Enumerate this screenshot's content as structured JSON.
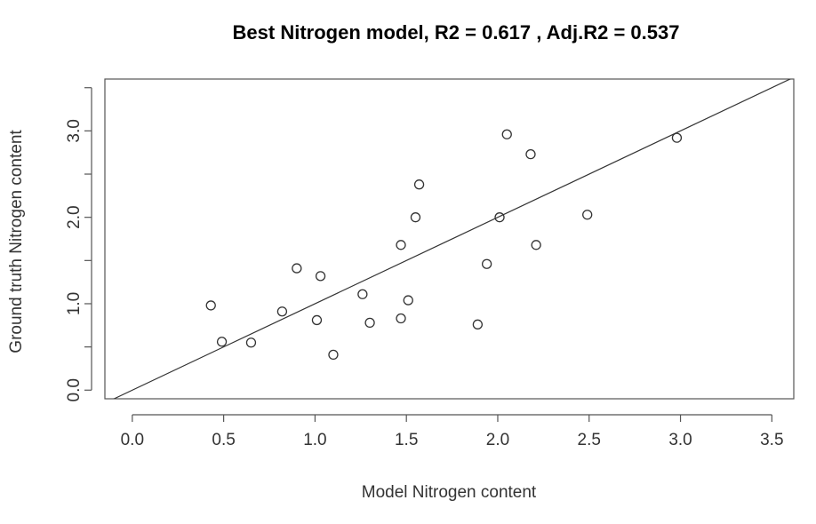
{
  "chart_data": {
    "type": "scatter",
    "title": "Best Nitrogen model,  R2 =  0.617 , Adj.R2 = 0.537",
    "xlabel": "Model Nitrogen content",
    "ylabel": "Ground truth Nitrogen content",
    "xlim": [
      -0.15,
      3.62
    ],
    "ylim": [
      -0.1,
      3.6
    ],
    "x_ticks": [
      0.0,
      0.5,
      1.0,
      1.5,
      2.0,
      2.5,
      3.0,
      3.5
    ],
    "x_tick_labels": [
      "0.0",
      "0.5",
      "1.0",
      "1.5",
      "2.0",
      "2.5",
      "3.0",
      "3.5"
    ],
    "y_ticks": [
      0.0,
      0.5,
      1.0,
      1.5,
      2.0,
      2.5,
      3.0,
      3.5
    ],
    "y_tick_labels": [
      "0.0",
      "",
      "1.0",
      "",
      "2.0",
      "",
      "3.0",
      ""
    ],
    "grid": false,
    "marker": "open-circle",
    "reference_line": {
      "slope": 1,
      "intercept": 0
    },
    "points": [
      {
        "x": 0.43,
        "y": 0.98
      },
      {
        "x": 0.49,
        "y": 0.56
      },
      {
        "x": 0.65,
        "y": 0.55
      },
      {
        "x": 0.82,
        "y": 0.91
      },
      {
        "x": 0.9,
        "y": 1.41
      },
      {
        "x": 1.01,
        "y": 0.81
      },
      {
        "x": 1.03,
        "y": 1.32
      },
      {
        "x": 1.1,
        "y": 0.41
      },
      {
        "x": 1.26,
        "y": 1.11
      },
      {
        "x": 1.3,
        "y": 0.78
      },
      {
        "x": 1.47,
        "y": 1.68
      },
      {
        "x": 1.47,
        "y": 0.83
      },
      {
        "x": 1.51,
        "y": 1.04
      },
      {
        "x": 1.55,
        "y": 2.0
      },
      {
        "x": 1.57,
        "y": 2.38
      },
      {
        "x": 1.89,
        "y": 0.76
      },
      {
        "x": 1.94,
        "y": 1.46
      },
      {
        "x": 2.01,
        "y": 2.0
      },
      {
        "x": 2.05,
        "y": 2.96
      },
      {
        "x": 2.18,
        "y": 2.73
      },
      {
        "x": 2.21,
        "y": 1.68
      },
      {
        "x": 2.49,
        "y": 2.03
      },
      {
        "x": 2.98,
        "y": 2.92
      }
    ],
    "colors": {
      "points": "#333333",
      "line": "#333333",
      "axes": "#555555",
      "text": "#333333"
    }
  }
}
